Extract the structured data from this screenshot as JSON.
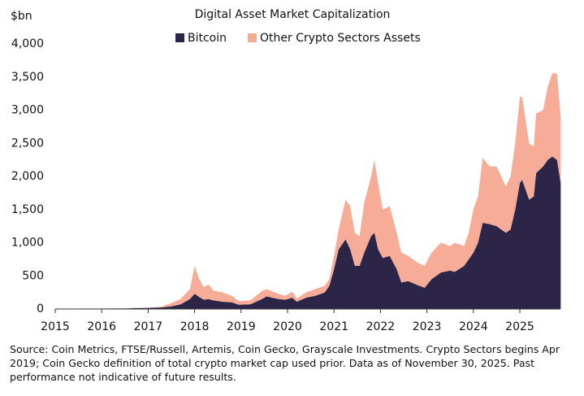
{
  "chart_data": {
    "type": "stacked-area",
    "title": "Digital Asset Market Capitalization",
    "y_label": "$bn",
    "note": "Source: Coin Metrics, FTSE/Russell, Artemis, Coin Gecko, Grayscale Investments. Crypto Sectors begins Apr 2019; Coin Gecko definition of total crypto market cap used prior. Data as of November 30, 2025. Past performance not indicative of future results.",
    "x": [
      2015.0,
      2016.0,
      2016.5,
      2017.0,
      2017.3,
      2017.5,
      2017.7,
      2017.9,
      2018.0,
      2018.1,
      2018.2,
      2018.3,
      2018.4,
      2018.6,
      2018.8,
      2018.95,
      2019.2,
      2019.45,
      2019.55,
      2019.8,
      2019.95,
      2020.1,
      2020.2,
      2020.4,
      2020.6,
      2020.8,
      2020.9,
      2021.0,
      2021.1,
      2021.25,
      2021.35,
      2021.45,
      2021.55,
      2021.65,
      2021.8,
      2021.87,
      2021.95,
      2022.05,
      2022.2,
      2022.35,
      2022.45,
      2022.6,
      2022.8,
      2022.95,
      2023.1,
      2023.3,
      2023.5,
      2023.6,
      2023.8,
      2023.9,
      2024.0,
      2024.1,
      2024.2,
      2024.35,
      2024.5,
      2024.7,
      2024.8,
      2024.9,
      2025.0,
      2025.05,
      2025.2,
      2025.3,
      2025.35,
      2025.5,
      2025.6,
      2025.7,
      2025.8,
      2025.88
    ],
    "series": [
      {
        "name": "Bitcoin",
        "color": "#2d2548",
        "values": [
          5,
          6,
          10,
          17,
          25,
          40,
          70,
          150,
          230,
          180,
          140,
          150,
          130,
          110,
          100,
          65,
          70,
          150,
          190,
          150,
          140,
          170,
          110,
          170,
          200,
          250,
          350,
          600,
          900,
          1050,
          900,
          650,
          650,
          850,
          1100,
          1150,
          900,
          770,
          800,
          600,
          400,
          420,
          360,
          320,
          450,
          550,
          580,
          560,
          650,
          750,
          850,
          1000,
          1300,
          1280,
          1250,
          1150,
          1200,
          1500,
          1900,
          1950,
          1650,
          1700,
          2050,
          2150,
          2250,
          2300,
          2250,
          1900
        ]
      },
      {
        "name": "Other Crypto Sectors Assets",
        "color": "#f6ac96",
        "values": [
          1,
          1,
          2,
          2,
          10,
          50,
          80,
          150,
          420,
          270,
          190,
          220,
          150,
          140,
          100,
          55,
          60,
          120,
          110,
          80,
          60,
          90,
          50,
          80,
          100,
          100,
          100,
          200,
          300,
          600,
          650,
          500,
          450,
          750,
          900,
          1100,
          1000,
          730,
          750,
          550,
          450,
          380,
          340,
          330,
          400,
          450,
          370,
          440,
          300,
          400,
          650,
          700,
          980,
          870,
          900,
          700,
          800,
          1000,
          1300,
          1250,
          850,
          750,
          900,
          850,
          1100,
          1260,
          1300,
          1000
        ]
      }
    ],
    "xlim": [
      2015,
      2025.9
    ],
    "xticks": [
      2015,
      2016,
      2017,
      2018,
      2019,
      2020,
      2021,
      2022,
      2023,
      2024,
      2025
    ],
    "ylim": [
      0,
      4000
    ],
    "yticks": [
      0,
      500,
      {
        "value": 1000,
        "label": "1,000"
      },
      {
        "value": 1500,
        "label": "1,500"
      },
      {
        "value": 2000,
        "label": "2,000"
      },
      {
        "value": 2500,
        "label": "2,500"
      },
      {
        "value": 3000,
        "label": "3,000"
      },
      {
        "value": 3500,
        "label": "3,500"
      },
      {
        "value": 4000,
        "label": "4,000"
      }
    ],
    "grid": false
  }
}
